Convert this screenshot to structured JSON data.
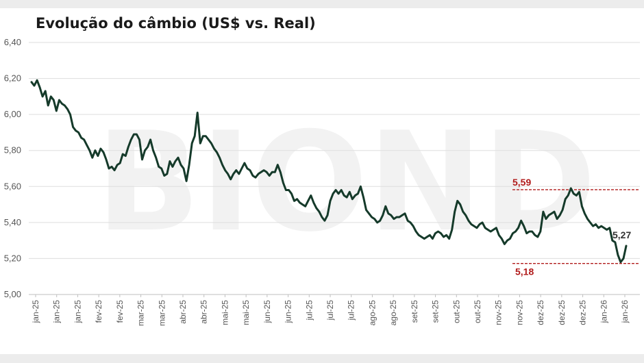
{
  "chart_data": {
    "type": "line",
    "title": "Evolução do câmbio (US$ vs. Real)",
    "watermark": "BIOND",
    "ylim": [
      5.0,
      6.4
    ],
    "yticks": [
      "5,00",
      "5,20",
      "5,40",
      "5,60",
      "5,80",
      "6,00",
      "6,20",
      "6,40"
    ],
    "ytick_values": [
      5.0,
      5.2,
      5.4,
      5.6,
      5.8,
      6.0,
      6.2,
      6.4
    ],
    "xtick_labels": [
      "jan-25",
      "jan-25",
      "jan-25",
      "fev-25",
      "fev-25",
      "mar-25",
      "mar-25",
      "abr-25",
      "abr-25",
      "mai-25",
      "mai-25",
      "jun-25",
      "jun-25",
      "jul-25",
      "jul-25",
      "jul-25",
      "ago-25",
      "ago-25",
      "set-25",
      "set-25",
      "out-25",
      "out-25",
      "nov-25",
      "nov-25",
      "dez-25",
      "dez-25",
      "dez-25",
      "jan-26",
      "jan-26"
    ],
    "grid": true,
    "line_color": "#153a2a",
    "series": [
      {
        "values": [
          6.18,
          6.16,
          6.19,
          6.15,
          6.1,
          6.13,
          6.05,
          6.1,
          6.08,
          6.02,
          6.08,
          6.06,
          6.05,
          6.03,
          6.0,
          5.93,
          5.91,
          5.9,
          5.87,
          5.86,
          5.83,
          5.8,
          5.76,
          5.8,
          5.77,
          5.81,
          5.79,
          5.75,
          5.7,
          5.71,
          5.69,
          5.72,
          5.73,
          5.78,
          5.77,
          5.82,
          5.86,
          5.89,
          5.89,
          5.86,
          5.75,
          5.8,
          5.82,
          5.86,
          5.8,
          5.76,
          5.71,
          5.7,
          5.66,
          5.67,
          5.74,
          5.71,
          5.74,
          5.76,
          5.72,
          5.7,
          5.63,
          5.72,
          5.84,
          5.88,
          6.01,
          5.84,
          5.88,
          5.88,
          5.86,
          5.84,
          5.81,
          5.79,
          5.76,
          5.72,
          5.69,
          5.67,
          5.64,
          5.67,
          5.69,
          5.67,
          5.7,
          5.73,
          5.7,
          5.69,
          5.66,
          5.65,
          5.67,
          5.68,
          5.69,
          5.68,
          5.66,
          5.68,
          5.68,
          5.72,
          5.68,
          5.62,
          5.58,
          5.58,
          5.56,
          5.52,
          5.53,
          5.51,
          5.5,
          5.49,
          5.52,
          5.55,
          5.51,
          5.48,
          5.46,
          5.43,
          5.41,
          5.44,
          5.52,
          5.56,
          5.58,
          5.56,
          5.58,
          5.55,
          5.54,
          5.57,
          5.53,
          5.55,
          5.56,
          5.6,
          5.54,
          5.47,
          5.45,
          5.43,
          5.42,
          5.4,
          5.41,
          5.44,
          5.49,
          5.45,
          5.44,
          5.42,
          5.43,
          5.43,
          5.44,
          5.45,
          5.41,
          5.4,
          5.38,
          5.35,
          5.33,
          5.32,
          5.31,
          5.32,
          5.33,
          5.31,
          5.34,
          5.35,
          5.34,
          5.32,
          5.33,
          5.31,
          5.36,
          5.46,
          5.52,
          5.5,
          5.46,
          5.44,
          5.41,
          5.39,
          5.38,
          5.37,
          5.39,
          5.4,
          5.37,
          5.36,
          5.35,
          5.36,
          5.37,
          5.33,
          5.31,
          5.28,
          5.3,
          5.31,
          5.34,
          5.35,
          5.37,
          5.41,
          5.38,
          5.34,
          5.35,
          5.35,
          5.33,
          5.32,
          5.35,
          5.46,
          5.42,
          5.44,
          5.45,
          5.46,
          5.42,
          5.44,
          5.47,
          5.53,
          5.55,
          5.59,
          5.56,
          5.55,
          5.57,
          5.49,
          5.45,
          5.42,
          5.4,
          5.38,
          5.39,
          5.37,
          5.38,
          5.37,
          5.36,
          5.37,
          5.3,
          5.29,
          5.22,
          5.18,
          5.2,
          5.27
        ]
      }
    ],
    "annotations": {
      "max_label": "5,59",
      "max_value": 5.59,
      "min_label": "5,18",
      "min_value": 5.18,
      "last_label": "5,27",
      "last_value": 5.27,
      "ref_line_color": "#b11b1b"
    }
  }
}
